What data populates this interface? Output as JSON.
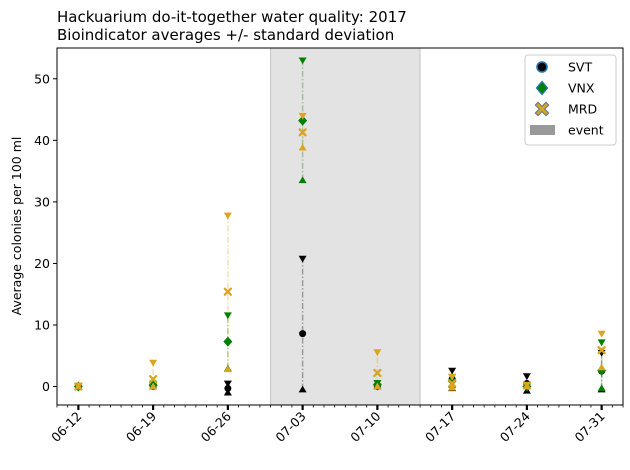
{
  "chart_data": {
    "type": "scatter",
    "title": "Hackuarium do-it-together water quality: 2017",
    "subtitle": "Bioindicator averages +/- standard deviation",
    "xlabel": "",
    "ylabel": "Average colonies per 100 ml",
    "x_ticks": [
      "06-12",
      "06-19",
      "06-26",
      "07-03",
      "07-10",
      "07-17",
      "07-24",
      "07-31"
    ],
    "x_tick_dates": [
      "2017-06-12",
      "2017-06-19",
      "2017-06-26",
      "2017-07-03",
      "2017-07-10",
      "2017-07-17",
      "2017-07-24",
      "2017-07-31"
    ],
    "xlim": [
      "2017-06-10",
      "2017-08-02"
    ],
    "ylim": [
      -3,
      55
    ],
    "y_ticks": [
      0,
      10,
      20,
      30,
      40,
      50
    ],
    "event": {
      "name": "event",
      "start": "2017-06-30",
      "end": "2017-07-14",
      "color": "#999999"
    },
    "legend": {
      "placement": "top-right",
      "entries": [
        "SVT",
        "VNX",
        "MRD",
        "event"
      ]
    },
    "series": [
      {
        "name": "SVT",
        "color": "#000000",
        "marker": "circle",
        "points": [
          {
            "x": "2017-06-12",
            "mean": 0,
            "low": 0,
            "high": 0
          },
          {
            "x": "2017-06-19",
            "mean": 0,
            "low": 0,
            "high": 0
          },
          {
            "x": "2017-06-26",
            "mean": -0.3,
            "low": -1,
            "high": 0.5
          },
          {
            "x": "2017-07-03",
            "mean": 8.6,
            "low": -0.5,
            "high": 20.8
          },
          {
            "x": "2017-07-10",
            "mean": 0,
            "low": 0,
            "high": 0
          },
          {
            "x": "2017-07-17",
            "mean": 1.2,
            "low": -0.3,
            "high": 2.6
          },
          {
            "x": "2017-07-24",
            "mean": 0.5,
            "low": -0.7,
            "high": 1.7
          },
          {
            "x": "2017-07-31",
            "mean": 2.5,
            "low": -0.5,
            "high": 5.5
          }
        ]
      },
      {
        "name": "VNX",
        "color": "#008000",
        "marker": "diamond",
        "points": [
          {
            "x": "2017-06-12",
            "mean": 0,
            "low": 0,
            "high": 0
          },
          {
            "x": "2017-06-19",
            "mean": 0.2,
            "low": 0,
            "high": 0.5
          },
          {
            "x": "2017-06-26",
            "mean": 7.3,
            "low": 2.9,
            "high": 11.6
          },
          {
            "x": "2017-07-03",
            "mean": 43.2,
            "low": 33.5,
            "high": 53.0
          },
          {
            "x": "2017-07-10",
            "mean": 0.3,
            "low": 0,
            "high": 0.6
          },
          {
            "x": "2017-07-17",
            "mean": 0.9,
            "low": 0.2,
            "high": 1.6
          },
          {
            "x": "2017-07-24",
            "mean": 0,
            "low": 0,
            "high": 0
          },
          {
            "x": "2017-07-31",
            "mean": 2.6,
            "low": -0.3,
            "high": 7.2
          }
        ]
      },
      {
        "name": "MRD",
        "color": "#DAA520",
        "marker": "x",
        "points": [
          {
            "x": "2017-06-12",
            "mean": 0,
            "low": 0,
            "high": 0.2
          },
          {
            "x": "2017-06-19",
            "mean": 1.2,
            "low": 0,
            "high": 3.9
          },
          {
            "x": "2017-06-26",
            "mean": 15.4,
            "low": 2.8,
            "high": 27.8
          },
          {
            "x": "2017-07-03",
            "mean": 41.3,
            "low": 38.8,
            "high": 44.0
          },
          {
            "x": "2017-07-10",
            "mean": 2.2,
            "low": 0,
            "high": 5.6
          },
          {
            "x": "2017-07-17",
            "mean": 0.5,
            "low": -0.2,
            "high": 1.6
          },
          {
            "x": "2017-07-24",
            "mean": 0.2,
            "low": 0,
            "high": 0.3
          },
          {
            "x": "2017-07-31",
            "mean": 5.9,
            "low": 3.1,
            "high": 8.6
          }
        ]
      }
    ]
  }
}
